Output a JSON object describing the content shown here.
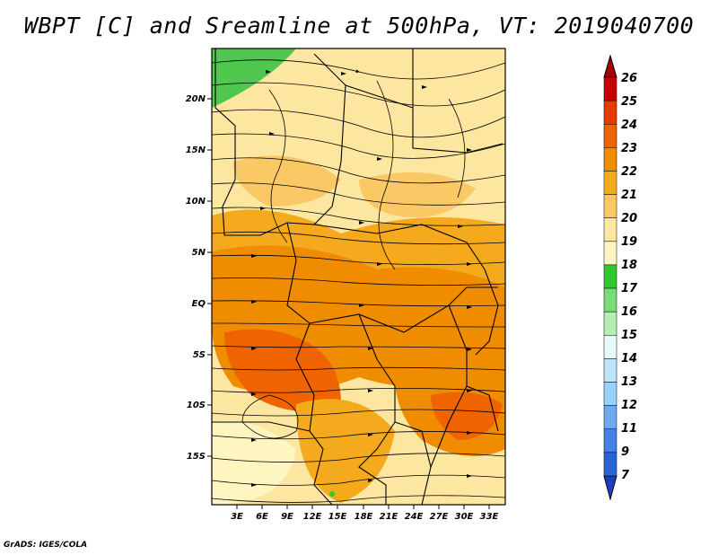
{
  "title": "WBPT [C] and Sreamline at 500hPa, VT: 2019040700",
  "footer": "GrADS: IGES/COLA",
  "lat_labels": [
    "20N",
    "15N",
    "10N",
    "5N",
    "EQ",
    "5S",
    "10S",
    "15S"
  ],
  "lon_labels": [
    "3E",
    "6E",
    "9E",
    "12E",
    "15E",
    "18E",
    "21E",
    "24E",
    "27E",
    "30E",
    "33E"
  ],
  "colorbar": {
    "labels": [
      "26",
      "25",
      "24",
      "23",
      "22",
      "21",
      "20",
      "19",
      "18",
      "17",
      "16",
      "15",
      "14",
      "13",
      "12",
      "11",
      "9",
      "7"
    ],
    "colors": [
      "#a50000",
      "#c80000",
      "#e63c00",
      "#f06400",
      "#f08c00",
      "#f5aa1e",
      "#fac864",
      "#fde6a0",
      "#fff5c0",
      "#32c832",
      "#78dc78",
      "#b4f0b4",
      "#e6fafa",
      "#bee6fa",
      "#96d2fa",
      "#6eaaf0",
      "#4682e6",
      "#2864d2",
      "#1e3cc8"
    ]
  },
  "legend_icons": [
    "arrow-up-icon",
    "arrow-down-icon"
  ]
}
